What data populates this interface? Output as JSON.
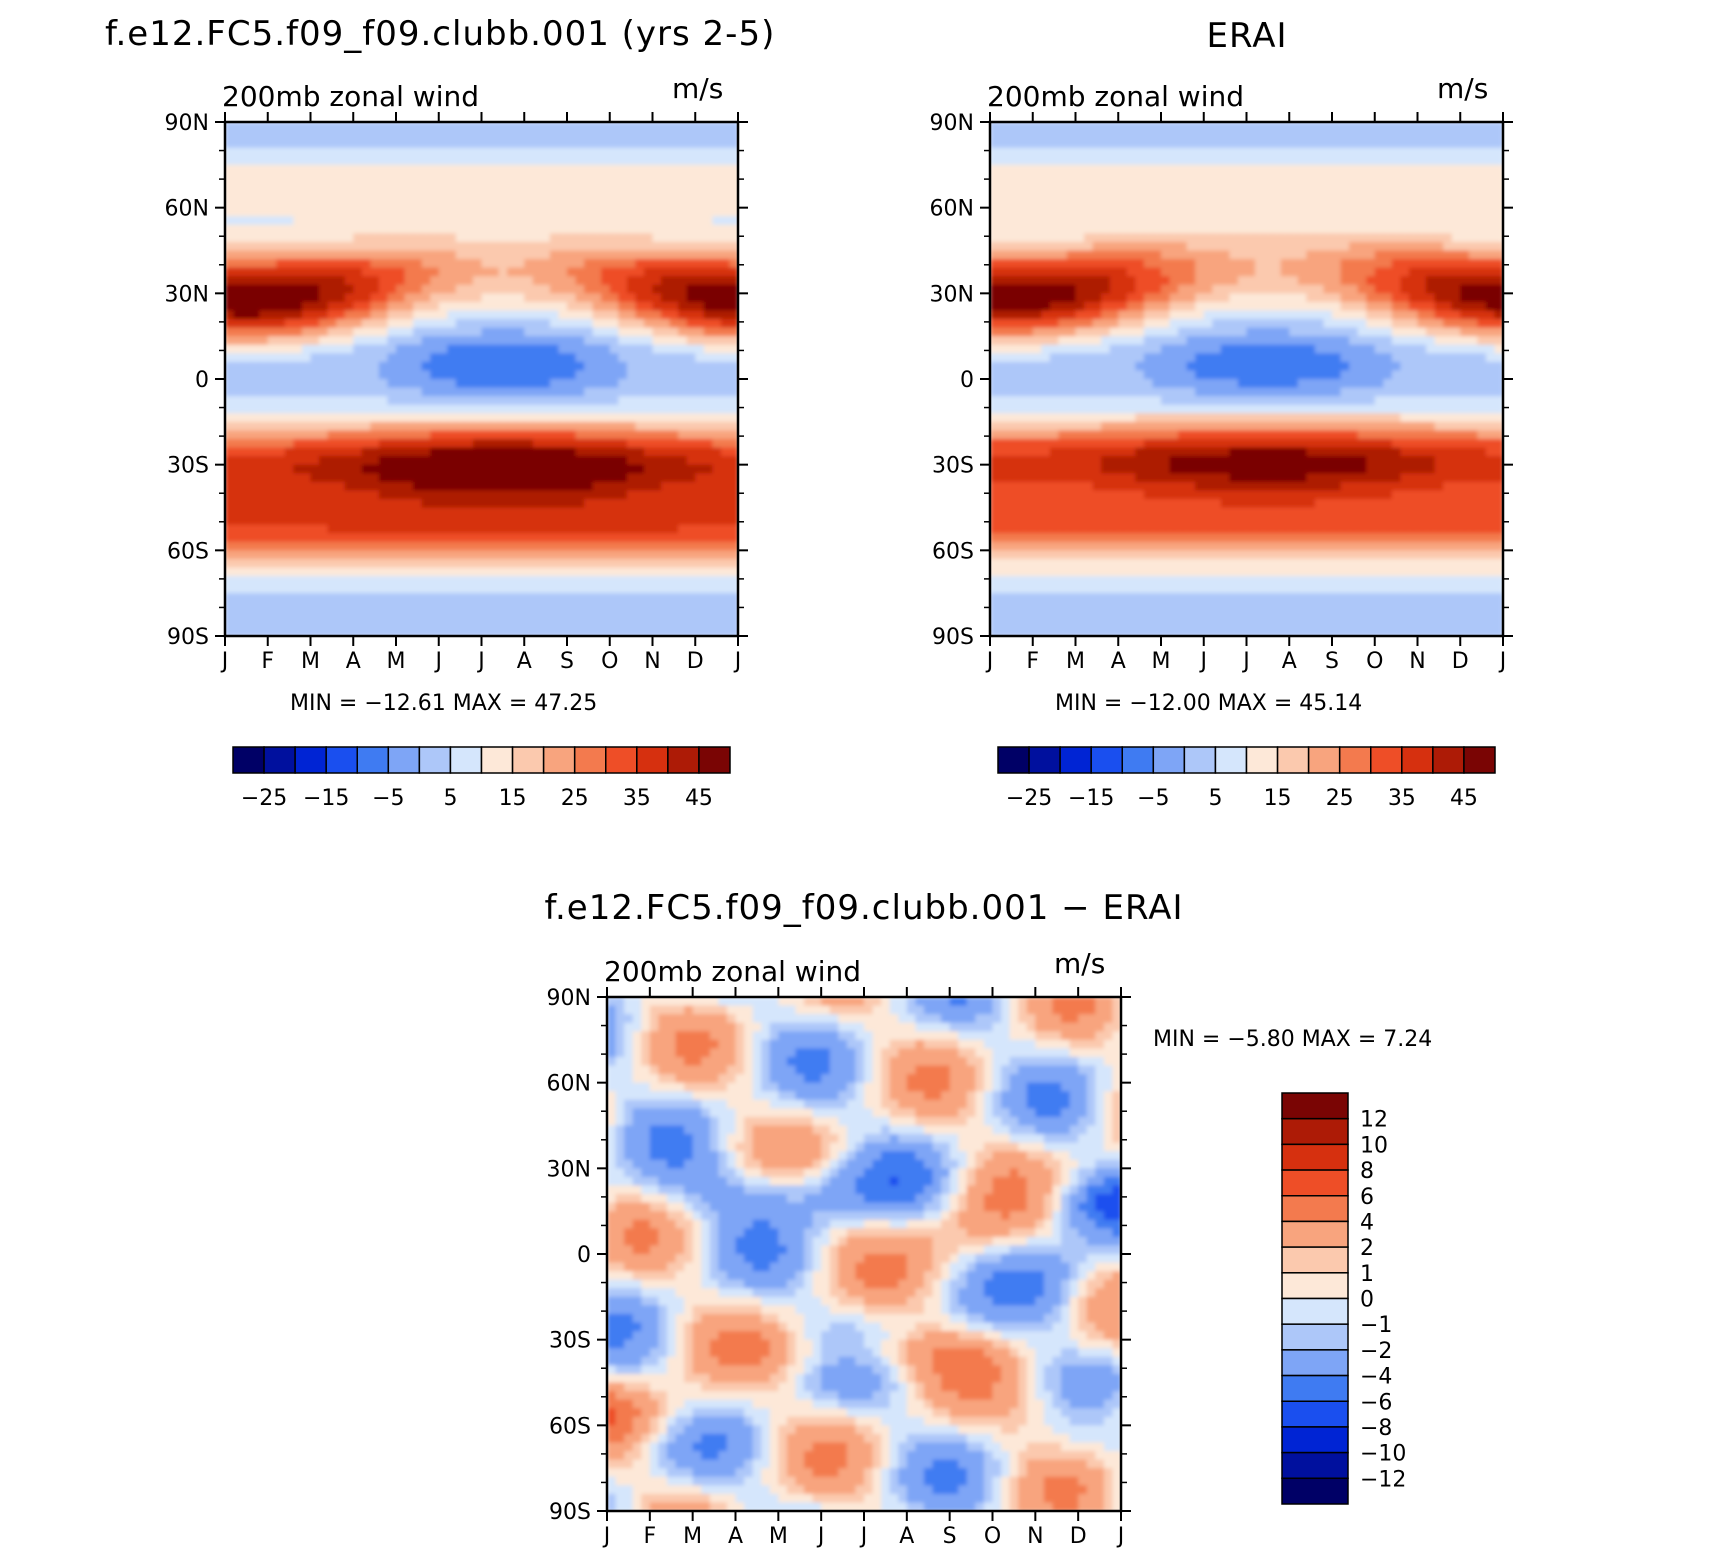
{
  "colors": {
    "palette": [
      "#000066",
      "#00109e",
      "#0024d4",
      "#1a4fef",
      "#3f7bf2",
      "#7ea5f6",
      "#adc7f9",
      "#d5e6fc",
      "#fde8d8",
      "#fbc9ae",
      "#f8a47e",
      "#f37a4e",
      "#ee4e27",
      "#d6300f",
      "#ad1b06",
      "#7a0504"
    ],
    "diff_palette": [
      "#000066",
      "#00109e",
      "#0024d4",
      "#1a4fef",
      "#3f7bf2",
      "#7ea5f6",
      "#adc7f9",
      "#d5e6fc",
      "#fde8d8",
      "#fbc9ae",
      "#f8a47e",
      "#f37a4e",
      "#ee4e27",
      "#d6300f",
      "#ad1b06",
      "#7a0504"
    ]
  },
  "months": [
    "J",
    "F",
    "M",
    "A",
    "M",
    "J",
    "J",
    "A",
    "S",
    "O",
    "N",
    "D",
    "J"
  ],
  "lat_labels": [
    "90N",
    "60N",
    "30N",
    "0",
    "30S",
    "60S",
    "90S"
  ],
  "chart_data": [
    {
      "type": "heatmap",
      "title": "f.e12.FC5.f09_f09.clubb.001 (yrs 2-5)",
      "field": "200mb  zonal  wind",
      "units": "m/s",
      "min_label": "MIN =  −12.61  MAX =    47.25",
      "min": -12.61,
      "max": 47.25,
      "colorbar_labels": [
        "−25",
        "−15",
        "−5",
        "5",
        "15",
        "25",
        "35",
        "45"
      ],
      "features": {
        "nh_jet": {
          "lat": 28,
          "winter_speed": 47,
          "summer_speed": 15
        },
        "sh_jet": {
          "lat": -30,
          "winter_speed": 47,
          "summer_speed": 32
        },
        "sh_subpolar_jet_speed": 34,
        "tropical_easterly_min": -12.6
      }
    },
    {
      "type": "heatmap",
      "title": "ERAI",
      "field": "200mb  zonal  wind",
      "units": "m/s",
      "min_label": "MIN =  −12.00  MAX =    45.14",
      "min": -12.0,
      "max": 45.14,
      "colorbar_labels": [
        "−25",
        "−15",
        "−5",
        "5",
        "15",
        "25",
        "35",
        "45"
      ],
      "features": {
        "nh_jet": {
          "lat": 29,
          "winter_speed": 45,
          "summer_speed": 15
        },
        "sh_jet": {
          "lat": -29,
          "winter_speed": 43,
          "summer_speed": 31
        },
        "sh_subpolar_jet_speed": 30,
        "tropical_easterly_min": -12.0
      }
    },
    {
      "type": "heatmap",
      "title": "f.e12.FC5.f09_f09.clubb.001  −  ERAI",
      "field": "200mb  zonal  wind",
      "units": "m/s",
      "min_label": "MIN =    −5.80  MAX =      7.24",
      "min": -5.8,
      "max": 7.24,
      "colorbar_labels": [
        "12",
        "10",
        "8",
        "6",
        "4",
        "2",
        "1",
        "0",
        "−1",
        "−2",
        "−4",
        "−6",
        "−8",
        "−10",
        "−12"
      ]
    }
  ]
}
